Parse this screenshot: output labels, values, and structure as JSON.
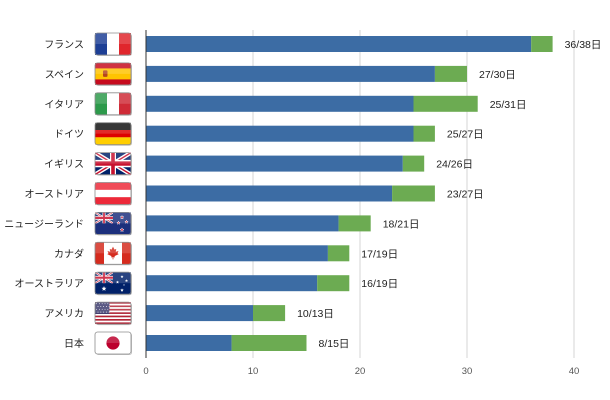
{
  "chart_data": {
    "type": "bar",
    "orientation": "horizontal",
    "stacked": true,
    "categories": [
      "フランス",
      "スペイン",
      "イタリア",
      "ドイツ",
      "イギリス",
      "オーストリア",
      "ニュージーランド",
      "カナダ",
      "オーストラリア",
      "アメリカ",
      "日本"
    ],
    "series": [
      {
        "values": [
          36,
          27,
          25,
          25,
          24,
          23,
          18,
          17,
          16,
          10,
          8
        ],
        "color": "#3c6ca4"
      },
      {
        "values": [
          2,
          3,
          6,
          2,
          2,
          4,
          3,
          2,
          3,
          3,
          7
        ],
        "color": "#6cab52"
      }
    ],
    "data_labels": [
      "36/38日",
      "27/30日",
      "25/31日",
      "25/27日",
      "24/26日",
      "23/27日",
      "18/21日",
      "17/19日",
      "16/19日",
      "10/13日",
      "8/15日"
    ],
    "xlim": [
      0,
      40
    ],
    "xticks": [
      0,
      10,
      20,
      30,
      40
    ],
    "grid": true,
    "legend": "none"
  },
  "flag_icons": [
    "france-flag-icon",
    "spain-flag-icon",
    "italy-flag-icon",
    "germany-flag-icon",
    "uk-flag-icon",
    "austria-flag-icon",
    "new-zealand-flag-icon",
    "canada-flag-icon",
    "australia-flag-icon",
    "usa-flag-icon",
    "japan-flag-icon"
  ]
}
